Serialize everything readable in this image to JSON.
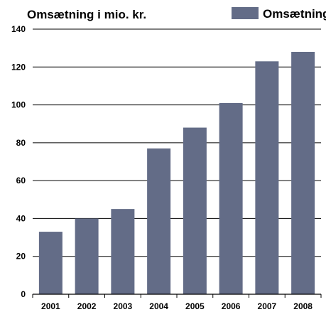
{
  "chart_data": {
    "type": "bar",
    "title": "Omsætning i mio. kr.",
    "categories": [
      "2001",
      "2002",
      "2003",
      "2004",
      "2005",
      "2006",
      "2007",
      "2008"
    ],
    "series": [
      {
        "name": "Omsætning",
        "values": [
          33,
          40,
          45,
          77,
          88,
          101,
          123,
          128
        ],
        "color": "#636c87"
      }
    ],
    "ylim": [
      0,
      140
    ],
    "yticks": [
      0,
      20,
      40,
      60,
      80,
      100,
      120,
      140
    ],
    "legend": "top-right",
    "grid": true
  }
}
